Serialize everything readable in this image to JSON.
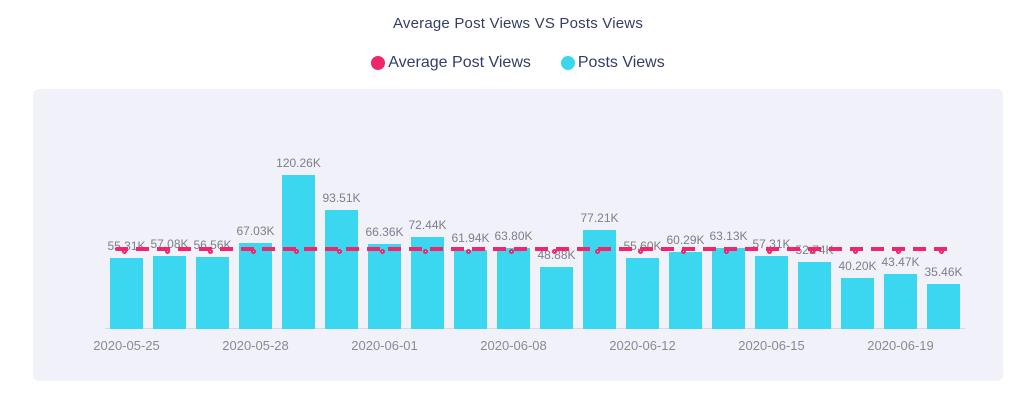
{
  "header": {
    "title": "Average Post Views VS Posts Views"
  },
  "legend": {
    "items": [
      {
        "id": "average-post-views",
        "label": "Average Post Views",
        "color": "#f0256b"
      },
      {
        "id": "posts-views",
        "label": "Posts Views",
        "color": "#3bd6f0"
      }
    ]
  },
  "chart_data": {
    "type": "bar",
    "title": "Average Post Views VS Posts Views",
    "unit": "K",
    "ylim": [
      0,
      188
    ],
    "grid": false,
    "legend_position": "top",
    "plot_background": "#f1f1f9",
    "series": [
      {
        "name": "Posts Views",
        "type": "bar",
        "color": "#3bd6f0",
        "values": [
          55.31,
          57.08,
          56.56,
          67.03,
          120.26,
          93.51,
          66.36,
          72.44,
          61.94,
          63.8,
          48.88,
          77.21,
          55.6,
          60.29,
          63.13,
          57.31,
          52.74,
          40.2,
          43.47,
          35.46
        ],
        "labels": [
          "55.31K",
          "57.08K",
          "56.56K",
          "67.03K",
          "120.26K",
          "93.51K",
          "66.36K",
          "72.44K",
          "61.94K",
          "63.80K",
          "48.88K",
          "77.21K",
          "55.60K",
          "60.29K",
          "63.13K",
          "57.31K",
          "52.74K",
          "40.20K",
          "43.47K",
          "35.46K"
        ]
      },
      {
        "name": "Average Post Views",
        "type": "line",
        "style": "dashed",
        "color": "#f0256b",
        "value": 62.43
      }
    ],
    "x_ticks": [
      {
        "index": 0,
        "label": "2020-05-25"
      },
      {
        "index": 3,
        "label": "2020-05-28"
      },
      {
        "index": 6,
        "label": "2020-06-01"
      },
      {
        "index": 9,
        "label": "2020-06-08"
      },
      {
        "index": 12,
        "label": "2020-06-12"
      },
      {
        "index": 15,
        "label": "2020-06-15"
      },
      {
        "index": 18,
        "label": "2020-06-19"
      }
    ],
    "label_color": "#7e7e8c",
    "axis_label_color": "#8a8a96"
  }
}
